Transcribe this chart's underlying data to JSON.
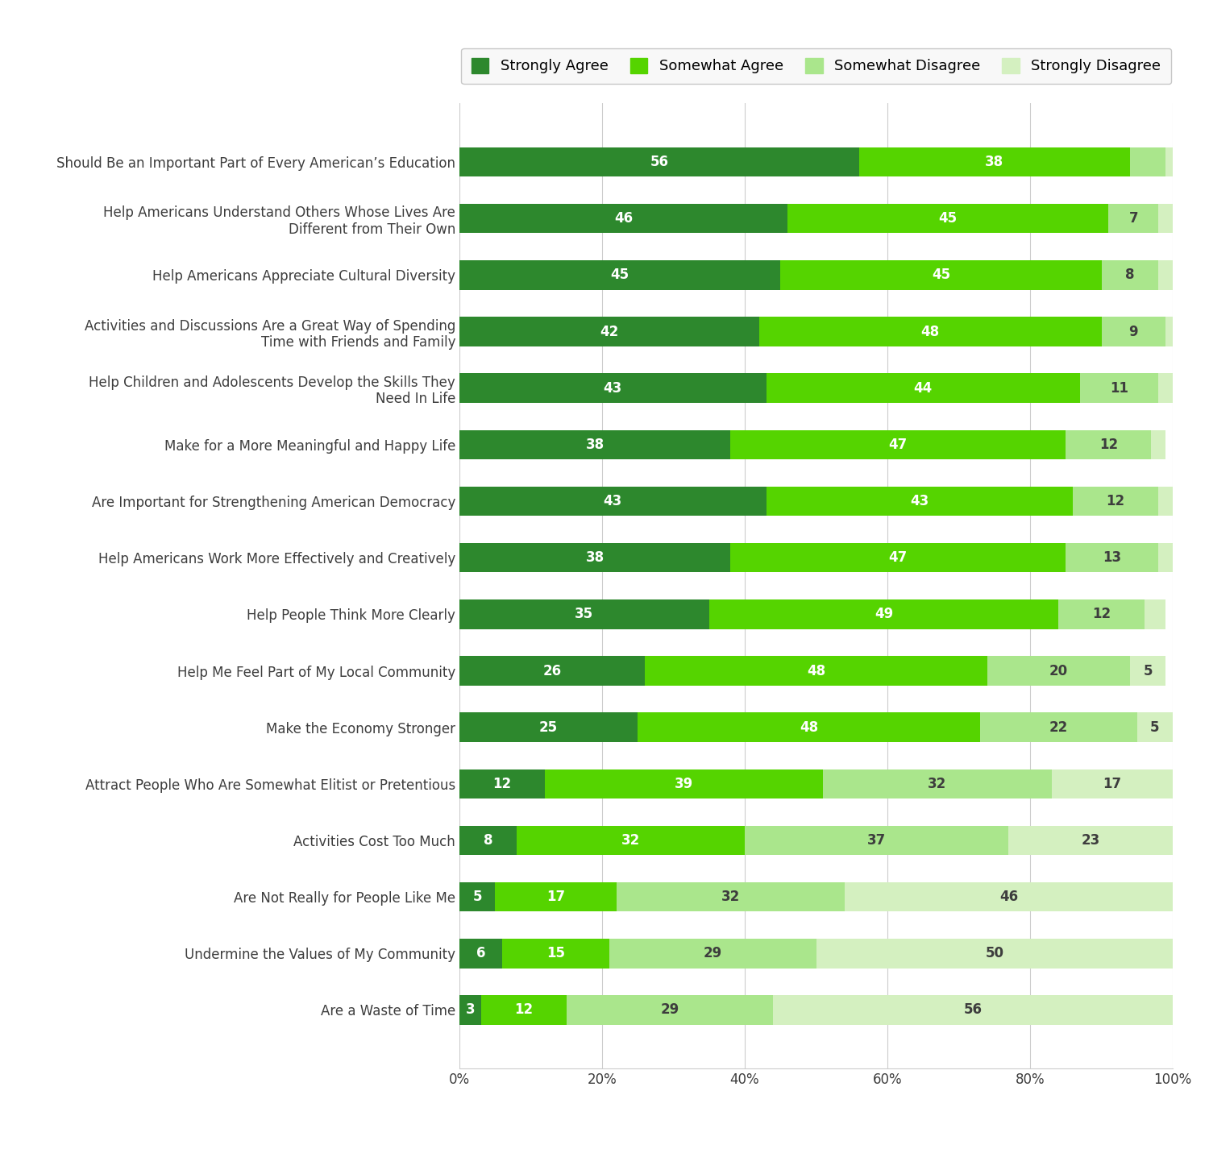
{
  "categories": [
    "Should Be an Important Part of Every American’s Education",
    "Help Americans Understand Others Whose Lives Are\nDifferent from Their Own",
    "Help Americans Appreciate Cultural Diversity",
    "Activities and Discussions Are a Great Way of Spending\nTime with Friends and Family",
    "Help Children and Adolescents Develop the Skills They\nNeed In Life",
    "Make for a More Meaningful and Happy Life",
    "Are Important for Strengthening American Democracy",
    "Help Americans Work More Effectively and Creatively",
    "Help People Think More Clearly",
    "Help Me Feel Part of My Local Community",
    "Make the Economy Stronger",
    "Attract People Who Are Somewhat Elitist or Pretentious",
    "Activities Cost Too Much",
    "Are Not Really for People Like Me",
    "Undermine the Values of My Community",
    "Are a Waste of Time"
  ],
  "strongly_agree": [
    56,
    46,
    45,
    42,
    43,
    38,
    43,
    38,
    35,
    26,
    25,
    12,
    8,
    5,
    6,
    3
  ],
  "somewhat_agree": [
    38,
    45,
    45,
    48,
    44,
    47,
    43,
    47,
    49,
    48,
    48,
    39,
    32,
    17,
    15,
    12
  ],
  "somewhat_disagree": [
    5,
    7,
    8,
    9,
    11,
    12,
    12,
    13,
    12,
    20,
    22,
    32,
    37,
    32,
    29,
    29
  ],
  "strongly_disagree": [
    1,
    2,
    2,
    2,
    2,
    2,
    2,
    2,
    3,
    5,
    5,
    17,
    23,
    46,
    50,
    56
  ],
  "colors": {
    "strongly_agree": "#2d882d",
    "somewhat_agree": "#55d400",
    "somewhat_disagree": "#aae68c",
    "strongly_disagree": "#d4f0c0"
  },
  "legend_labels": [
    "Strongly Agree",
    "Somewhat Agree",
    "Somewhat Disagree",
    "Strongly Disagree"
  ],
  "xlabel_ticks": [
    0,
    20,
    40,
    60,
    80,
    100
  ],
  "xlabel_labels": [
    "0%",
    "20%",
    "40%",
    "60%",
    "80%",
    "100%"
  ],
  "bar_height": 0.52,
  "background_color": "#ffffff",
  "text_color": "#3d3d3d",
  "grid_color": "#cccccc",
  "label_fontsize": 12,
  "bar_label_fontsize": 12
}
